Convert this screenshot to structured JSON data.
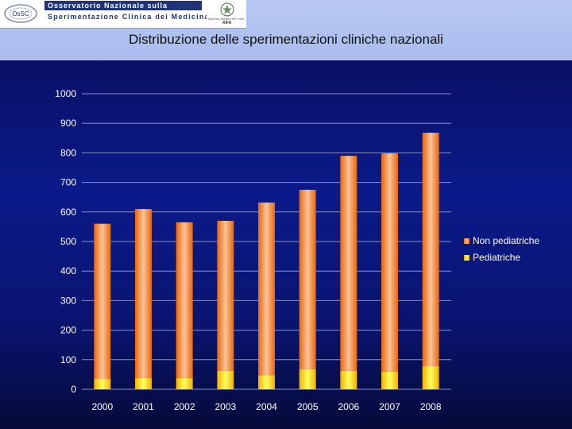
{
  "header": {
    "logo_line1": "Osservatorio Nazionale sulla",
    "logo_line2": "Sperimentazione Clinica dei Medicinali",
    "logo_mark_text": "OsSC",
    "logo_subtext": "Agenzia Italiana del Farmaco",
    "logo_aifa": "AIFA",
    "title": "Distribuzione delle sperimentazioni cliniche nazionali"
  },
  "colors": {
    "non_pediatric_edge": "#e8660a",
    "non_pediatric_center": "#fac49a",
    "pediatric_edge": "#f0b000",
    "pediatric_center": "#ffff60",
    "gridline": "#8890c8"
  },
  "chart_data": {
    "type": "bar",
    "stacked": true,
    "title": "",
    "xlabel": "",
    "ylabel": "",
    "categories": [
      "2000",
      "2001",
      "2002",
      "2003",
      "2004",
      "2005",
      "2006",
      "2007",
      "2008"
    ],
    "series": [
      {
        "name": "Pediatriche",
        "values": [
          35,
          38,
          38,
          62,
          47,
          68,
          62,
          60,
          78
        ]
      },
      {
        "name": "Non pediatriche",
        "values": [
          525,
          572,
          527,
          508,
          585,
          607,
          728,
          738,
          790
        ]
      }
    ],
    "ylim": [
      0,
      1000
    ],
    "yticks": [
      "0",
      "100",
      "200",
      "300",
      "400",
      "500",
      "600",
      "700",
      "800",
      "900",
      "1000"
    ],
    "grid": true,
    "legend_position": "right",
    "legend": [
      "Non pediatriche",
      "Pediatriche"
    ]
  }
}
